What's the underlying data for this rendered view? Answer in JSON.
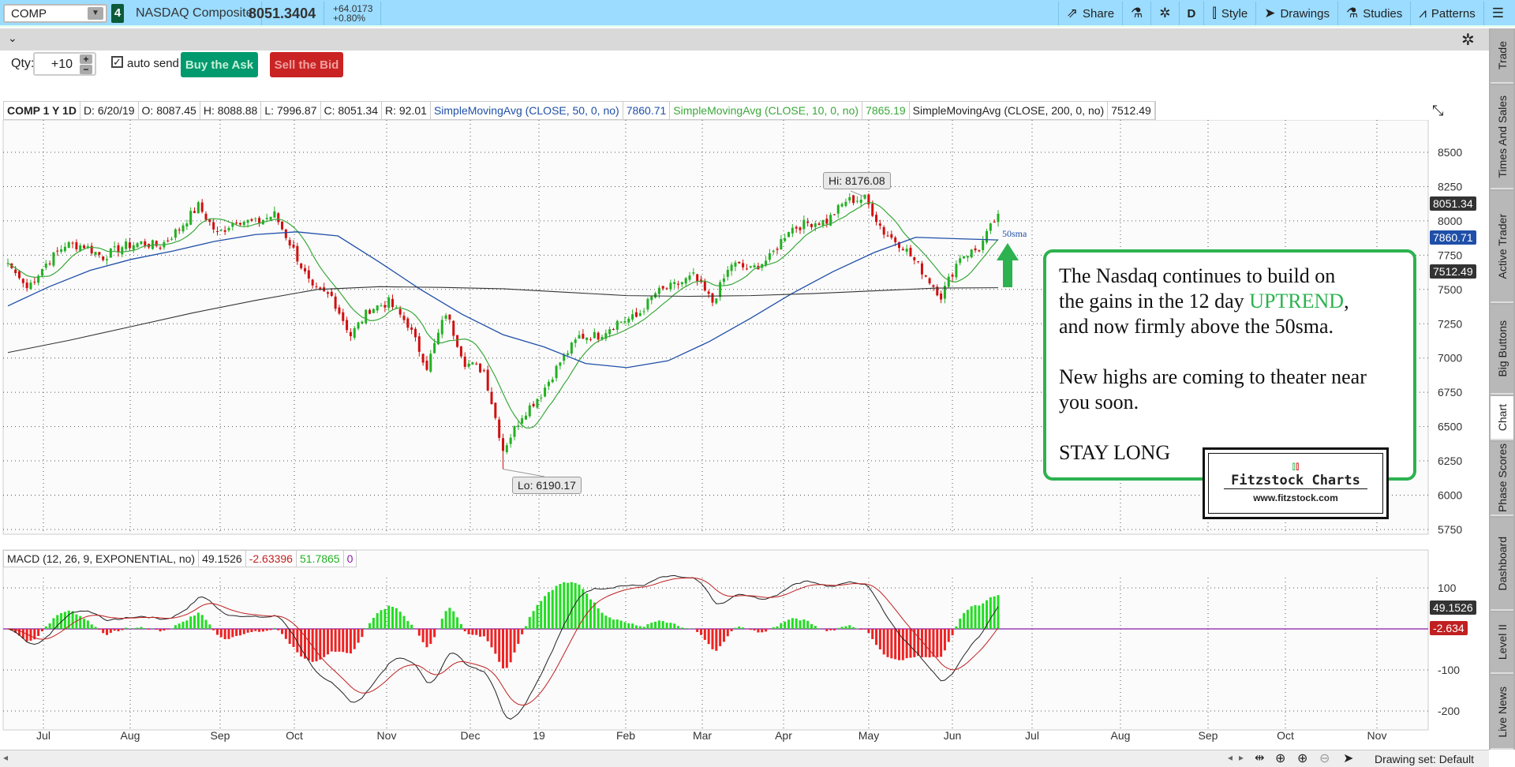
{
  "topbar": {
    "symbol": "COMP",
    "link_number": "4",
    "description": "NASDAQ Composite",
    "last": "8051.3404",
    "change": "+64.0173",
    "change_pct": "+0.80%",
    "buttons": [
      {
        "label": "Share",
        "icon": "share-icon"
      },
      {
        "label": "",
        "icon": "flask-icon"
      },
      {
        "label": "",
        "icon": "gear-icon"
      },
      {
        "label": "D",
        "icon": ""
      },
      {
        "label": "Style",
        "icon": "candle-icon"
      },
      {
        "label": "Drawings",
        "icon": "cursor-icon"
      },
      {
        "label": "Studies",
        "icon": "flask-icon"
      },
      {
        "label": "Patterns",
        "icon": "patterns-icon"
      },
      {
        "label": "",
        "icon": "menu-icon"
      }
    ]
  },
  "order": {
    "qty_label": "Qty:",
    "qty_value": "+10",
    "auto_send_label": "auto send",
    "auto_send_checked": true,
    "buy_label": "Buy the Ask",
    "sell_label": "Sell the Bid",
    "buy_color": "#009a6e",
    "sell_color": "#c92323"
  },
  "study_header": {
    "symbol": "COMP 1 Y 1D",
    "date": "D: 6/20/19",
    "open": "O: 8087.45",
    "high": "H: 8088.88",
    "low": "L: 7996.87",
    "close": "C: 8051.34",
    "range": "R: 92.01",
    "sma50": "SimpleMovingAvg (CLOSE, 50, 0, no)",
    "sma50_val": "7860.71",
    "sma10": "SimpleMovingAvg (CLOSE, 10, 0, no)",
    "sma10_val": "7865.19",
    "sma200": "SimpleMovingAvg (CLOSE, 200, 0, no)",
    "sma200_val": "7512.49"
  },
  "macd_header": {
    "label": "MACD (12, 26, 9, EXPONENTIAL, no)",
    "value": "49.1526",
    "avg": "-2.63396",
    "diff": "51.7865",
    "zero": "0"
  },
  "price_labels": {
    "last": "8051.34",
    "sma50": "7860.71",
    "sma200": "7512.49",
    "macd": "49.1526",
    "macd_diff": "-2.634"
  },
  "hi_label": "Hi: 8176.08",
  "lo_label": "Lo: 6190.17",
  "sma_note": "50sma",
  "annotation": {
    "line1": "The Nasdaq continues to build on",
    "line2a": "the gains in the 12 day ",
    "line2b": "UPTREND",
    "line2c": ",",
    "line3": "and now firmly above the 50sma.",
    "line4": "New highs are coming to theater near",
    "line5": "you soon.",
    "line6": "STAY LONG"
  },
  "logo": {
    "name": "Fitzstock Charts",
    "url": "www.fitzstock.com"
  },
  "sidebar": [
    "Trade",
    "Times And Sales",
    "Active Trader",
    "Big Buttons",
    "Chart",
    "Phase Scores",
    "Dashboard",
    "Level II",
    "Live News"
  ],
  "bottombar": {
    "drawing_set": "Drawing set: Default"
  },
  "chart_data": {
    "type": "candlestick",
    "period": "1 Y, 1D",
    "weekly_closes": [
      7692,
      7510,
      7688,
      7826,
      7820,
      7737,
      7812,
      7839,
      7816,
      7945,
      8109,
      7903,
      8010,
      7986,
      8046,
      7788,
      7496,
      7449,
      7167,
      7357,
      7407,
      7247,
      6938,
      7330,
      6969,
      6910,
      6333,
      6584,
      6739,
      6971,
      7157,
      7164,
      7263,
      7298,
      7472,
      7527,
      7595,
      7408,
      7688,
      7643,
      7729,
      7939,
      7984,
      7998,
      8146,
      8164,
      7917,
      7816,
      7637,
      7453,
      7742,
      7797,
      8051.34
    ],
    "sma50_points": [
      7380,
      7520,
      7640,
      7720,
      7780,
      7850,
      7900,
      7920,
      7890,
      7700,
      7500,
      7320,
      7170,
      7080,
      6960,
      6930,
      6980,
      7120,
      7290,
      7470,
      7630,
      7770,
      7880,
      7870,
      7860.71
    ],
    "sma200_points": [
      7040,
      7130,
      7230,
      7330,
      7420,
      7500,
      7520,
      7515,
      7505,
      7480,
      7455,
      7450,
      7455,
      7470,
      7490,
      7510,
      7512.49
    ],
    "high": 8176.08,
    "low": 6190.17,
    "y_ticks": [
      8500,
      8250,
      8000,
      7750,
      7500,
      7250,
      7000,
      6750,
      6500,
      6250,
      6000,
      5750
    ],
    "macd_ticks": [
      100,
      -100,
      -200
    ],
    "x_labels": [
      "Jul",
      "Aug",
      "Sep",
      "Oct",
      "Nov",
      "Dec",
      "19",
      "Feb",
      "Mar",
      "Apr",
      "May",
      "Jun",
      "Jul",
      "Aug",
      "Sep",
      "Oct",
      "Nov"
    ],
    "colors": {
      "up": "#22b022",
      "down": "#d01010",
      "sma10": "#3aa83a",
      "sma50": "#1f4fa8",
      "sma200": "#333333",
      "macd": "#222222",
      "macd_avg": "#c02020",
      "zero_line": "#8a1aa8",
      "hist_up": "#22dd22",
      "hist_down": "#ee2222"
    }
  }
}
